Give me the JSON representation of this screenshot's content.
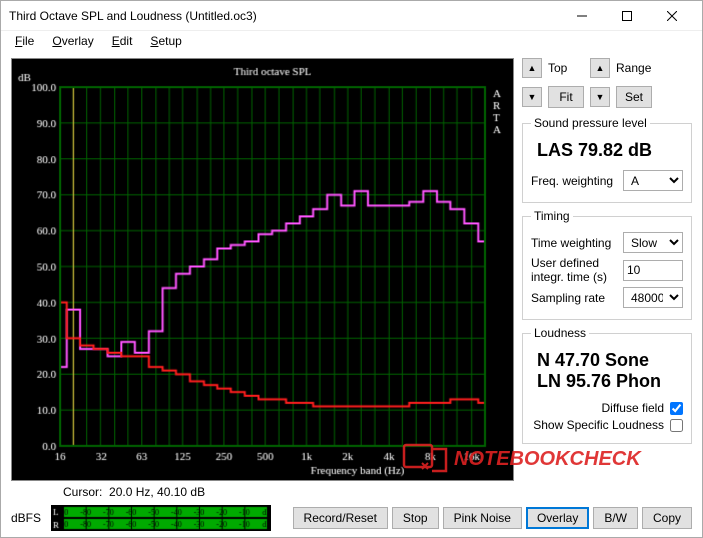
{
  "window": {
    "title": "Third Octave SPL and Loudness (Untitled.oc3)"
  },
  "menu": {
    "file": "File",
    "overlay": "Overlay",
    "edit": "Edit",
    "setup": "Setup"
  },
  "cursor": {
    "prefix": "Cursor:",
    "text": "20.0 Hz, 40.10 dB"
  },
  "nav": {
    "top": "Top",
    "fit": "Fit",
    "range": "Range",
    "set": "Set"
  },
  "spl": {
    "legend": "Sound pressure level",
    "reading": "LAS 79.82 dB",
    "freq_weighting_label": "Freq. weighting",
    "freq_weighting_value": "A"
  },
  "timing": {
    "legend": "Timing",
    "time_weighting_label": "Time weighting",
    "time_weighting_value": "Slow",
    "user_time_label": "User defined integr. time (s)",
    "user_time_value": "10",
    "sampling_label": "Sampling rate",
    "sampling_value": "48000"
  },
  "loudness": {
    "legend": "Loudness",
    "sone": "N 47.70 Sone",
    "phon": "LN 95.76 Phon",
    "diffuse_label": "Diffuse field",
    "diffuse_checked": true,
    "specific_label": "Show Specific Loudness",
    "specific_checked": false
  },
  "buttons": {
    "record": "Record/Reset",
    "stop": "Stop",
    "pink": "Pink Noise",
    "overlay": "Overlay",
    "bw": "B/W",
    "copy": "Copy"
  },
  "meter": {
    "dbfs": "dBFS",
    "ticks": [
      -90,
      -80,
      -70,
      -60,
      -50,
      -40,
      -30,
      -20,
      -10,
      "dB"
    ],
    "L": "L",
    "R": "R"
  },
  "chart": {
    "type": "third-octave-bar-line",
    "title": "Third octave SPL",
    "side_label": "ARTA",
    "y_label": "dB",
    "x_label": "Frequency band (Hz)",
    "background": "#000000",
    "grid_color": "#006400",
    "spl_color": "#ff55ff",
    "noise_color": "#ff1e1e",
    "text_color": "#ffffff",
    "cursor_color": "#ffd24a",
    "ylim": [
      0,
      100
    ],
    "ytick_step": 10,
    "x_ticks": [
      16,
      32,
      63,
      125,
      250,
      500,
      "1k",
      "2k",
      "4k",
      "8k",
      "16k"
    ],
    "bands_hz": [
      16,
      20,
      25,
      31.5,
      40,
      50,
      63,
      80,
      100,
      125,
      160,
      200,
      250,
      315,
      400,
      500,
      630,
      800,
      1000,
      1250,
      1600,
      2000,
      2500,
      3150,
      4000,
      5000,
      6300,
      8000,
      10000,
      12500,
      16000,
      20000
    ],
    "spl_db": [
      22,
      38,
      27,
      27,
      25,
      29,
      26,
      32,
      44,
      48,
      50,
      52,
      55,
      56,
      57,
      59,
      60,
      62,
      64,
      66,
      70,
      67,
      71,
      67,
      67,
      67,
      68,
      71,
      68,
      66,
      62,
      57
    ],
    "noise_db": [
      40,
      30,
      28,
      27,
      26,
      25,
      25,
      22,
      21,
      20,
      18,
      17,
      16,
      15,
      14,
      13,
      13,
      12,
      12,
      11,
      11,
      11,
      11,
      11,
      11,
      11,
      12,
      12,
      12,
      13,
      13,
      12
    ]
  },
  "watermark": "NOTEBOOKCHECK"
}
